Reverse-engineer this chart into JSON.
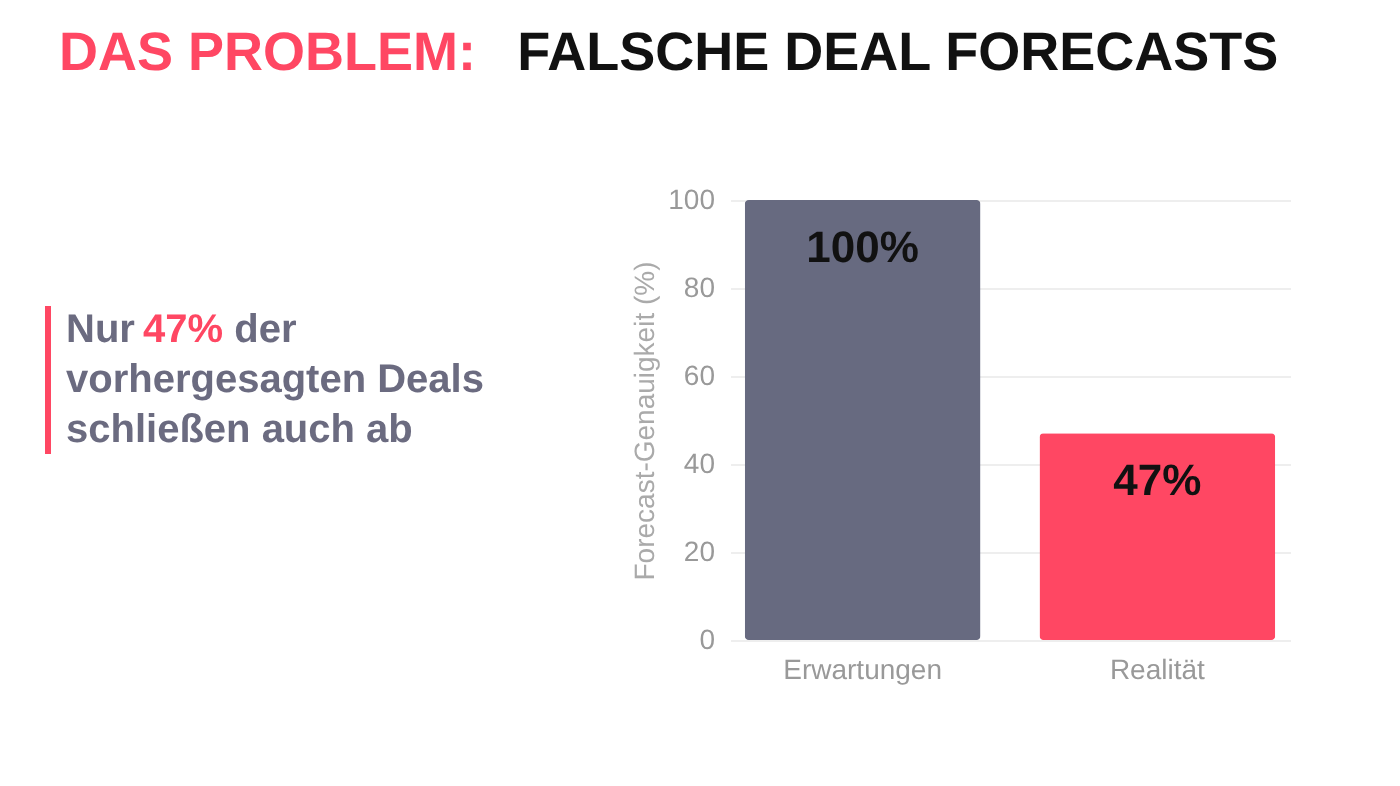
{
  "chart_data": {
    "type": "bar",
    "title": "DAS PROBLEM: FALSCHE DEAL FORECASTS",
    "annotations": [
      "Nur 47% der vorhergesagten Deals schließen auch ab"
    ],
    "categories": [
      "Erwartungen",
      "Realität"
    ],
    "values": [
      100,
      47
    ],
    "colors": [
      "#676a80",
      "#ff4763"
    ],
    "ylabel": "Forecast-Genauigkeit (%)",
    "ylim": [
      0,
      100
    ],
    "yticks": [
      0,
      20,
      40,
      60,
      80,
      100
    ],
    "value_labels": [
      "100%",
      "47%"
    ],
    "grid": "y"
  }
}
